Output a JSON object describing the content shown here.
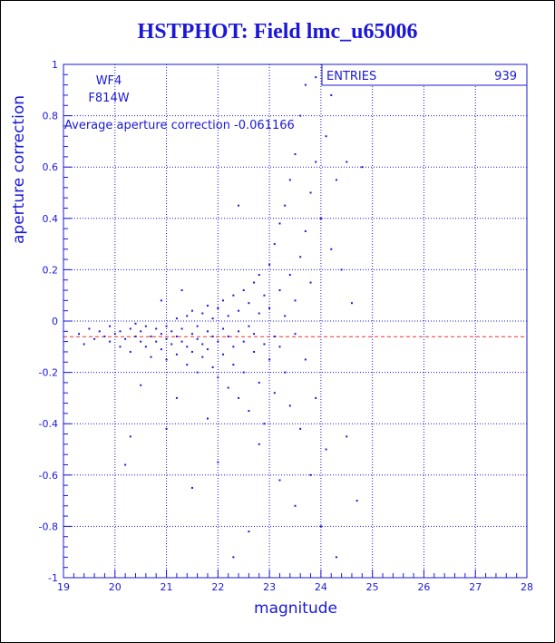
{
  "colors": {
    "ink": "#1a18d6",
    "avg_line": "#e8332b",
    "background": "#ffffff"
  },
  "chart_data": {
    "type": "scatter",
    "title": "HSTPHOT: Field lmc_u65006",
    "xlabel": "magnitude",
    "ylabel": "aperture correction",
    "xlim": [
      19,
      28
    ],
    "ylim": [
      -1,
      1
    ],
    "x_ticks": [
      19,
      20,
      21,
      22,
      23,
      24,
      25,
      26,
      27,
      28
    ],
    "x_tick_labels": [
      "19",
      "20",
      "21",
      "22",
      "23",
      "24",
      "25",
      "26",
      "27",
      "28"
    ],
    "y_ticks": [
      -1,
      -0.8,
      -0.6,
      -0.4,
      -0.2,
      0,
      0.2,
      0.4,
      0.6,
      0.8,
      1
    ],
    "y_tick_labels": [
      "-1",
      "-0.8",
      "-0.6",
      "-0.4",
      "-0.2",
      "0",
      "0.2",
      "0.4",
      "0.6",
      "0.8",
      "1"
    ],
    "grid": true,
    "annotations": {
      "chip": "WF4",
      "filter": "F814W",
      "average_text": "Average aperture correction -0.061166"
    },
    "stats_box": {
      "label": "ENTRIES",
      "value": "939"
    },
    "average_line": -0.061166,
    "points": [
      [
        19.3,
        -0.05
      ],
      [
        19.4,
        -0.09
      ],
      [
        19.5,
        -0.03
      ],
      [
        19.6,
        -0.07
      ],
      [
        19.7,
        -0.04
      ],
      [
        19.8,
        -0.06
      ],
      [
        19.9,
        -0.08
      ],
      [
        19.9,
        -0.02
      ],
      [
        20.0,
        -0.05
      ],
      [
        20.1,
        -0.1
      ],
      [
        20.1,
        -0.04
      ],
      [
        20.2,
        -0.07
      ],
      [
        20.3,
        -0.03
      ],
      [
        20.3,
        -0.12
      ],
      [
        20.4,
        -0.06
      ],
      [
        20.4,
        -0.01
      ],
      [
        20.5,
        -0.08
      ],
      [
        20.5,
        -0.04
      ],
      [
        20.6,
        -0.02
      ],
      [
        20.6,
        -0.1
      ],
      [
        20.7,
        -0.06
      ],
      [
        20.7,
        -0.14
      ],
      [
        20.8,
        -0.03
      ],
      [
        20.8,
        -0.08
      ],
      [
        20.9,
        -0.05
      ],
      [
        20.9,
        -0.11
      ],
      [
        21.0,
        -0.07
      ],
      [
        21.0,
        -0.02
      ],
      [
        21.0,
        -0.15
      ],
      [
        21.1,
        -0.04
      ],
      [
        21.1,
        -0.09
      ],
      [
        21.2,
        -0.06
      ],
      [
        21.2,
        0.01
      ],
      [
        21.2,
        -0.13
      ],
      [
        21.3,
        -0.08
      ],
      [
        21.3,
        -0.03
      ],
      [
        21.4,
        -0.1
      ],
      [
        21.4,
        0.02
      ],
      [
        21.4,
        -0.17
      ],
      [
        21.5,
        -0.05
      ],
      [
        21.5,
        -0.12
      ],
      [
        21.5,
        0.04
      ],
      [
        21.6,
        -0.07
      ],
      [
        21.6,
        -0.02
      ],
      [
        21.6,
        -0.2
      ],
      [
        21.7,
        -0.09
      ],
      [
        21.7,
        0.03
      ],
      [
        21.7,
        -0.14
      ],
      [
        21.8,
        -0.04
      ],
      [
        21.8,
        -0.11
      ],
      [
        21.8,
        0.06
      ],
      [
        21.9,
        -0.06
      ],
      [
        21.9,
        -0.18
      ],
      [
        21.9,
        0.01
      ],
      [
        22.0,
        -0.08
      ],
      [
        22.0,
        0.05
      ],
      [
        22.0,
        -0.22
      ],
      [
        22.1,
        -0.03
      ],
      [
        22.1,
        -0.13
      ],
      [
        22.1,
        0.08
      ],
      [
        22.2,
        -0.06
      ],
      [
        22.2,
        -0.26
      ],
      [
        22.2,
        0.02
      ],
      [
        22.3,
        -0.1
      ],
      [
        22.3,
        0.1
      ],
      [
        22.3,
        -0.17
      ],
      [
        22.4,
        -0.04
      ],
      [
        22.4,
        0.04
      ],
      [
        22.4,
        -0.3
      ],
      [
        22.5,
        -0.08
      ],
      [
        22.5,
        0.12
      ],
      [
        22.5,
        -0.2
      ],
      [
        22.6,
        -0.02
      ],
      [
        22.6,
        0.07
      ],
      [
        22.6,
        -0.35
      ],
      [
        22.7,
        -0.12
      ],
      [
        22.7,
        0.15
      ],
      [
        22.7,
        -0.05
      ],
      [
        22.8,
        0.03
      ],
      [
        22.8,
        -0.24
      ],
      [
        22.8,
        0.18
      ],
      [
        22.9,
        -0.09
      ],
      [
        22.9,
        0.1
      ],
      [
        22.9,
        -0.4
      ],
      [
        23.0,
        0.05
      ],
      [
        23.0,
        -0.15
      ],
      [
        23.0,
        0.22
      ],
      [
        23.1,
        -0.06
      ],
      [
        23.1,
        0.3
      ],
      [
        23.1,
        -0.28
      ],
      [
        23.2,
        0.12
      ],
      [
        23.2,
        -0.1
      ],
      [
        23.2,
        0.38
      ],
      [
        23.3,
        0.02
      ],
      [
        23.3,
        -0.2
      ],
      [
        23.3,
        0.45
      ],
      [
        23.4,
        0.18
      ],
      [
        23.4,
        -0.33
      ],
      [
        23.4,
        0.55
      ],
      [
        23.5,
        0.08
      ],
      [
        23.5,
        -0.05
      ],
      [
        23.5,
        0.65
      ],
      [
        23.6,
        0.25
      ],
      [
        23.6,
        -0.42
      ],
      [
        23.6,
        0.8
      ],
      [
        23.7,
        0.35
      ],
      [
        23.7,
        -0.15
      ],
      [
        23.7,
        0.92
      ],
      [
        23.8,
        0.5
      ],
      [
        23.8,
        -0.6
      ],
      [
        23.8,
        0.15
      ],
      [
        23.9,
        0.62
      ],
      [
        23.9,
        -0.3
      ],
      [
        23.9,
        0.95
      ],
      [
        24.0,
        0.4
      ],
      [
        24.0,
        -0.8
      ],
      [
        24.1,
        0.72
      ],
      [
        24.1,
        -0.5
      ],
      [
        24.2,
        0.88
      ],
      [
        24.2,
        0.28
      ],
      [
        24.3,
        -0.92
      ],
      [
        24.3,
        0.55
      ],
      [
        24.4,
        0.2
      ],
      [
        24.5,
        -0.45
      ],
      [
        24.5,
        0.62
      ],
      [
        24.6,
        0.07
      ],
      [
        24.7,
        -0.7
      ],
      [
        24.8,
        0.6
      ],
      [
        20.3,
        -0.45
      ],
      [
        20.2,
        -0.56
      ],
      [
        20.5,
        -0.25
      ],
      [
        21.5,
        -0.65
      ],
      [
        21.8,
        -0.38
      ],
      [
        22.0,
        -0.55
      ],
      [
        22.3,
        -0.92
      ],
      [
        22.6,
        -0.82
      ],
      [
        21.2,
        -0.3
      ],
      [
        21.0,
        -0.42
      ],
      [
        22.8,
        -0.48
      ],
      [
        23.2,
        -0.62
      ],
      [
        23.5,
        -0.72
      ],
      [
        22.4,
        0.45
      ],
      [
        21.3,
        0.12
      ],
      [
        20.9,
        0.08
      ]
    ]
  }
}
